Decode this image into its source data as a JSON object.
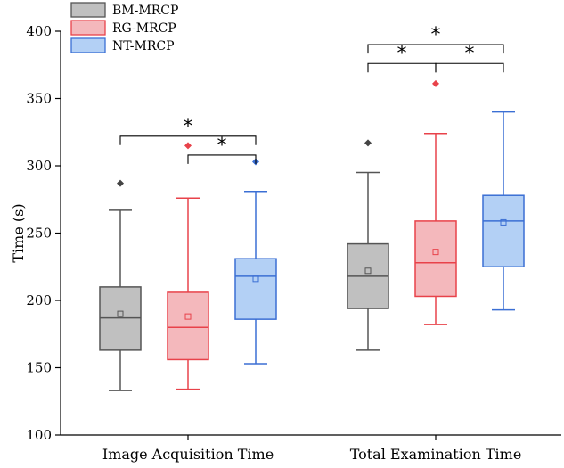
{
  "chart_data": {
    "type": "box",
    "ylabel": "Time (s)",
    "ylim": [
      100,
      400
    ],
    "yticks": [
      100,
      150,
      200,
      250,
      300,
      350,
      400
    ],
    "categories": [
      "Image Acquisition Time",
      "Total Examination Time"
    ],
    "series": [
      {
        "name": "BM-MRCP",
        "edge": "#555555",
        "fill": "#c0c0c0",
        "stats": [
          {
            "min": 133,
            "q1": 163,
            "median": 187,
            "mean": 190,
            "q3": 210,
            "max": 267,
            "outliers": [
              287
            ]
          },
          {
            "min": 163,
            "q1": 194,
            "median": 218,
            "mean": 222,
            "q3": 242,
            "max": 295,
            "outliers": [
              317
            ]
          }
        ]
      },
      {
        "name": "RG-MRCP",
        "edge": "#e8424a",
        "fill": "#f4b8bc",
        "stats": [
          {
            "min": 134,
            "q1": 156,
            "median": 180,
            "mean": 188,
            "q3": 206,
            "max": 276,
            "outliers": [
              315
            ]
          },
          {
            "min": 182,
            "q1": 203,
            "median": 228,
            "mean": 236,
            "q3": 259,
            "max": 324,
            "outliers": [
              361
            ]
          }
        ]
      },
      {
        "name": "NT-MRCP",
        "edge": "#3b6fd4",
        "fill": "#b3d0f5",
        "stats": [
          {
            "min": 153,
            "q1": 186,
            "median": 218,
            "mean": 216,
            "q3": 231,
            "max": 281,
            "outliers": [
              303
            ]
          },
          {
            "min": 193,
            "q1": 225,
            "median": 259,
            "mean": 258,
            "q3": 278,
            "max": 340,
            "outliers": []
          }
        ]
      }
    ],
    "significance": [
      {
        "group": 0,
        "from": 0,
        "to": 2,
        "y": 322,
        "label": "*"
      },
      {
        "group": 0,
        "from": 1,
        "to": 2,
        "y": 308,
        "label": "*"
      },
      {
        "group": 1,
        "from": 0,
        "to": 2,
        "y": 390,
        "label": "*"
      },
      {
        "group": 1,
        "from": 0,
        "to": 1,
        "y": 376,
        "label": "*"
      },
      {
        "group": 1,
        "from": 1,
        "to": 2,
        "y": 376,
        "label": "*"
      }
    ]
  }
}
